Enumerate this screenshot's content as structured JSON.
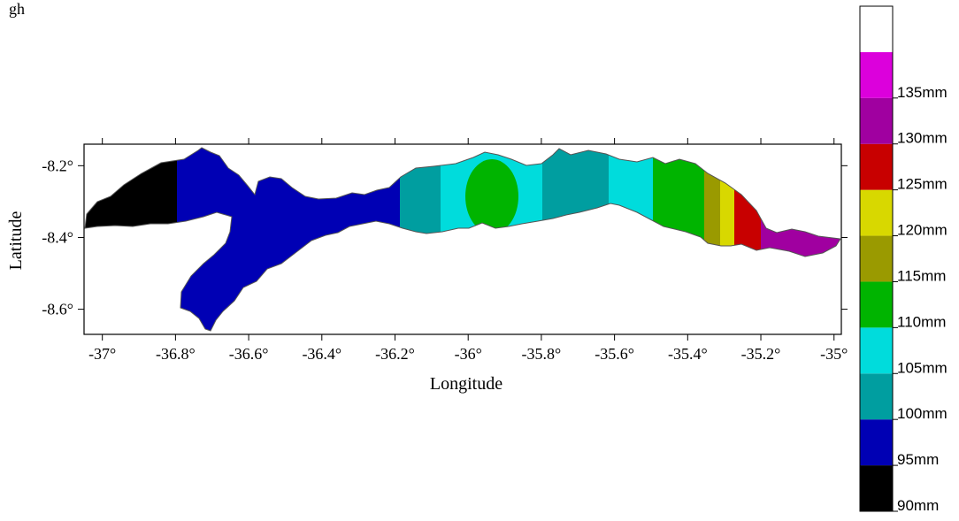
{
  "top_note": "gh",
  "chart_data": {
    "type": "heatmap",
    "xlabel": "Longitude",
    "ylabel": "Latitude",
    "xlim": [
      -37.05,
      -34.98
    ],
    "ylim": [
      -8.67,
      -8.14
    ],
    "x_ticks": [
      "-37°",
      "-36.8°",
      "-36.6°",
      "-36.4°",
      "-36.2°",
      "-36°",
      "-35.8°",
      "-35.6°",
      "-35.4°",
      "-35.2°",
      "-35°"
    ],
    "x_tick_values": [
      -37,
      -36.8,
      -36.6,
      -36.4,
      -36.2,
      -36,
      -35.8,
      -35.6,
      -35.4,
      -35.2,
      -35
    ],
    "y_ticks": [
      "-8.2°",
      "-8.4°",
      "-8.6°"
    ],
    "y_tick_values": [
      -8.2,
      -8.4,
      -8.6
    ],
    "grid": false,
    "legend": "right",
    "legend_labels": [
      "90mm",
      "95mm",
      "100mm",
      "105mm",
      "110mm",
      "115mm",
      "120mm",
      "125mm",
      "130mm",
      "135mm"
    ],
    "legend_colors": [
      "#000000",
      "#0000b4",
      "#009ea0",
      "#00dcdc",
      "#00b400",
      "#9a9a00",
      "#d8d800",
      "#c80000",
      "#a000a0",
      "#dc00dc",
      "#ffffff"
    ]
  }
}
